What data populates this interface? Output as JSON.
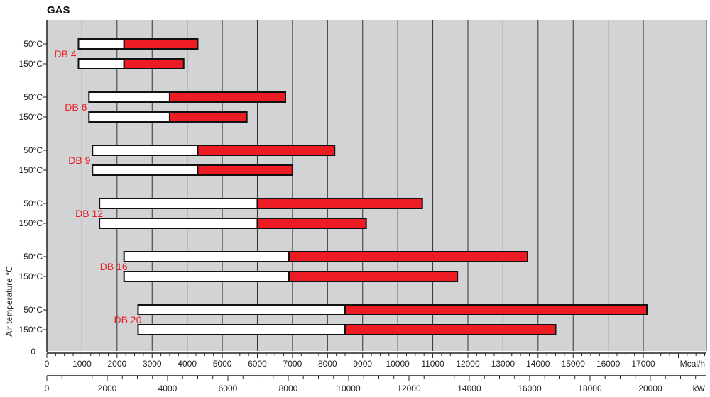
{
  "chart_data": {
    "type": "bar",
    "title": "GAS",
    "ylabel": "Air temperature °C",
    "y_zero_label": "0",
    "axis_mcal": {
      "unit": "Mcal/h",
      "ticks": [
        0,
        1000,
        2000,
        3000,
        4000,
        5000,
        6000,
        7000,
        8000,
        9000,
        10000,
        11000,
        12000,
        13000,
        14000,
        15000,
        16000,
        17000
      ],
      "range": [
        0,
        18800
      ]
    },
    "axis_kw": {
      "unit": "kW",
      "ticks": [
        0,
        2000,
        4000,
        6000,
        8000,
        10000,
        12000,
        14000,
        16000,
        18000,
        20000
      ],
      "range": [
        0,
        21860
      ]
    },
    "grid": true,
    "colors": {
      "background": "#d1d3d4",
      "filled": "#ed1c24",
      "empty": "#ffffff",
      "model_label": "#ed1c24",
      "gridline": "#333333"
    },
    "groups": [
      {
        "model": "DB 4",
        "rows": [
          {
            "temp": "50°C",
            "start": 900,
            "mid": 2200,
            "end": 4300
          },
          {
            "temp": "150°C",
            "start": 900,
            "mid": 2200,
            "end": 3900
          }
        ]
      },
      {
        "model": "DB 6",
        "rows": [
          {
            "temp": "50°C",
            "start": 1200,
            "mid": 3500,
            "end": 6800
          },
          {
            "temp": "150°C",
            "start": 1200,
            "mid": 3500,
            "end": 5700
          }
        ]
      },
      {
        "model": "DB 9",
        "rows": [
          {
            "temp": "50°C",
            "start": 1300,
            "mid": 4300,
            "end": 8200
          },
          {
            "temp": "150°C",
            "start": 1300,
            "mid": 4300,
            "end": 7000
          }
        ]
      },
      {
        "model": "DB 12",
        "rows": [
          {
            "temp": "50°C",
            "start": 1500,
            "mid": 6000,
            "end": 10700
          },
          {
            "temp": "150°C",
            "start": 1500,
            "mid": 6000,
            "end": 9100
          }
        ]
      },
      {
        "model": "DB 16",
        "rows": [
          {
            "temp": "50°C",
            "start": 2200,
            "mid": 6900,
            "end": 13700
          },
          {
            "temp": "150°C",
            "start": 2200,
            "mid": 6900,
            "end": 11700
          }
        ]
      },
      {
        "model": "DB 20",
        "rows": [
          {
            "temp": "50°C",
            "start": 2600,
            "mid": 8500,
            "end": 17100
          },
          {
            "temp": "150°C",
            "start": 2600,
            "mid": 8500,
            "end": 14500
          }
        ]
      }
    ]
  }
}
